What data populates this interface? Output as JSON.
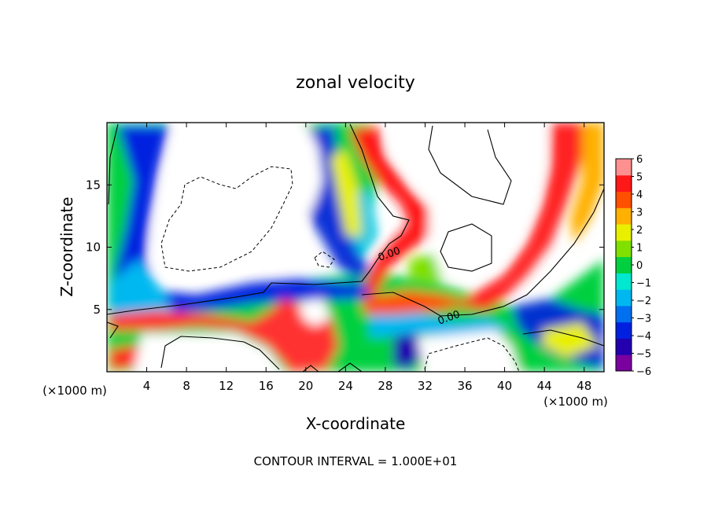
{
  "chart_data": {
    "type": "heatmap",
    "title": "zonal velocity",
    "xlabel": "X-coordinate",
    "ylabel": "Z-coordinate",
    "x_unit_left": "(×1000 m)",
    "x_unit_right": "(×1000 m)",
    "xlim": [
      0,
      50
    ],
    "ylim": [
      0,
      20
    ],
    "x_ticks": [
      "4",
      "8",
      "12",
      "16",
      "20",
      "24",
      "28",
      "32",
      "36",
      "40",
      "44",
      "48"
    ],
    "y_ticks": [
      "5",
      "10",
      "15"
    ],
    "colorbar_levels": [
      "6",
      "5",
      "4",
      "3",
      "2",
      "1",
      "0",
      "−1",
      "−2",
      "−3",
      "−4",
      "−5",
      "−6"
    ],
    "colorbar_range": [
      -6,
      6
    ],
    "contour_labels": [
      {
        "text": "0.00",
        "x": 28.5,
        "y": 9.2
      },
      {
        "text": "0.00",
        "x": 34.5,
        "y": 4.1
      }
    ],
    "footer": "CONTOUR INTERVAL = 1.000E+01",
    "palette": [
      "#7a00a0",
      "#2200b0",
      "#0020e0",
      "#0070f0",
      "#00b8f0",
      "#00e8d0",
      "#00d040",
      "#80e000",
      "#e8f000",
      "#ffb000",
      "#ff5000",
      "#ff1818",
      "#ff9090"
    ]
  }
}
